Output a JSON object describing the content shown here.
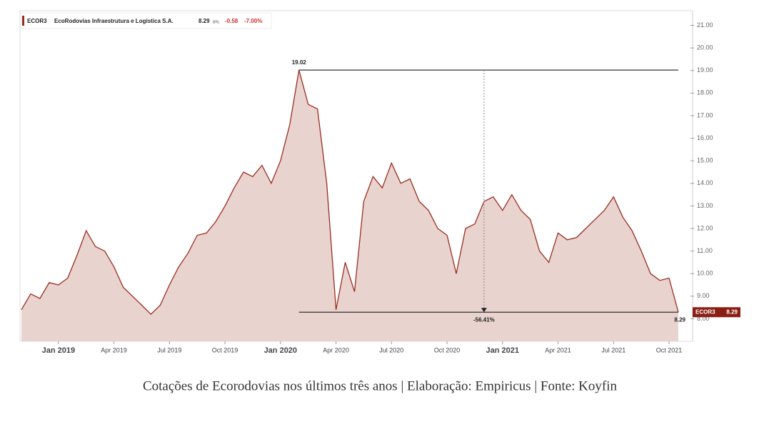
{
  "chart_data": {
    "type": "area",
    "header": {
      "ticker": "ECOR3",
      "company": "EcoRodovias Infraestrutura e Logística S.A.",
      "currency": "BRL",
      "change": "-0.58",
      "change_pct": "-7.00%"
    },
    "categories": [
      null,
      null,
      null,
      null,
      "Jan 2019",
      null,
      null,
      null,
      null,
      null,
      "Apr 2019",
      null,
      null,
      null,
      null,
      null,
      "Jul 2019",
      null,
      null,
      null,
      null,
      null,
      "Oct 2019",
      null,
      null,
      null,
      null,
      null,
      "Jan 2020",
      null,
      null,
      null,
      null,
      null,
      "Apr 2020",
      null,
      null,
      null,
      null,
      null,
      "Jul 2020",
      null,
      null,
      null,
      null,
      null,
      "Oct 2020",
      null,
      null,
      null,
      null,
      null,
      "Jan 2021",
      null,
      null,
      null,
      null,
      null,
      "Apr 2021",
      null,
      null,
      null,
      null,
      null,
      "Jul 2021",
      null,
      null,
      null,
      null,
      null,
      "Oct 2021",
      null
    ],
    "values": [
      8.4,
      9.1,
      8.9,
      9.6,
      9.5,
      9.8,
      10.8,
      11.9,
      11.2,
      11.0,
      10.3,
      9.4,
      9.0,
      8.6,
      8.2,
      8.6,
      9.5,
      10.3,
      10.9,
      11.7,
      11.8,
      12.3,
      13.0,
      13.8,
      14.5,
      14.3,
      14.8,
      14.0,
      15.0,
      16.6,
      19.02,
      17.5,
      17.3,
      14.0,
      8.4,
      10.5,
      9.2,
      13.2,
      14.3,
      13.8,
      14.9,
      14.0,
      14.2,
      13.2,
      12.8,
      12.0,
      11.7,
      10.0,
      12.0,
      12.2,
      13.2,
      13.4,
      12.8,
      13.5,
      12.8,
      12.4,
      11.0,
      10.5,
      11.8,
      11.5,
      11.6,
      12.0,
      12.4,
      12.8,
      13.4,
      12.5,
      11.9,
      11.0,
      10.0,
      9.7,
      9.8,
      8.29
    ],
    "color": "#9b2d20",
    "fill": "#e8d3ce",
    "ylim": [
      7.0,
      21.65
    ],
    "yticks": [
      {
        "value": 8,
        "label": "8.00"
      },
      {
        "value": 9,
        "label": "9.00"
      },
      {
        "value": 10,
        "label": "10.00"
      },
      {
        "value": 11,
        "label": "11.00"
      },
      {
        "value": 12,
        "label": "12.00"
      },
      {
        "value": 13,
        "label": "13.00"
      },
      {
        "value": 14,
        "label": "14.00"
      },
      {
        "value": 15,
        "label": "15.00"
      },
      {
        "value": 16,
        "label": "16.00"
      },
      {
        "value": 17,
        "label": "17.00"
      },
      {
        "value": 18,
        "label": "18.00"
      },
      {
        "value": 19,
        "label": "19.00"
      },
      {
        "value": 20,
        "label": "20.00"
      },
      {
        "value": 21,
        "label": "21.00"
      }
    ],
    "drawdown_label": "-56.41%",
    "caption": "Cotações de Ecorodovias nos últimos três anos | Elaboração: Empiricus | Fonte: Koyfin"
  }
}
